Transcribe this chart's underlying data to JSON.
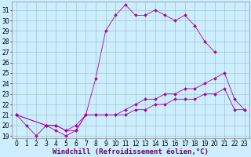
{
  "xlabel": "Windchill (Refroidissement éolien,°C)",
  "bg_color": "#cceeff",
  "line_color": "#aa00aa",
  "xlim_min": -0.5,
  "xlim_max": 23.5,
  "ylim_min": 18.8,
  "ylim_max": 31.8,
  "yticks": [
    19,
    20,
    21,
    22,
    23,
    24,
    25,
    26,
    27,
    28,
    29,
    30,
    31
  ],
  "xticks": [
    0,
    1,
    2,
    3,
    4,
    5,
    6,
    7,
    8,
    9,
    10,
    11,
    12,
    13,
    14,
    15,
    16,
    17,
    18,
    19,
    20,
    21,
    22,
    23
  ],
  "line1_x": [
    0,
    1,
    2,
    3,
    4,
    5,
    6,
    7,
    8,
    9,
    10,
    11,
    12,
    13,
    14,
    15,
    16,
    17,
    18,
    19,
    20
  ],
  "line1_y": [
    21.0,
    20.0,
    19.0,
    20.0,
    20.0,
    19.5,
    19.5,
    21.0,
    24.5,
    29.0,
    30.5,
    31.5,
    30.5,
    30.5,
    31.0,
    30.5,
    30.0,
    30.5,
    29.5,
    28.0,
    27.0
  ],
  "line2_x": [
    0,
    3,
    4,
    5,
    6,
    7,
    8,
    9,
    10,
    11,
    12,
    13,
    14,
    15,
    16,
    17,
    18,
    19,
    20,
    21,
    22,
    23
  ],
  "line2_y": [
    21.0,
    20.0,
    20.0,
    19.5,
    20.0,
    21.0,
    21.0,
    21.0,
    21.0,
    21.5,
    22.0,
    22.5,
    22.5,
    23.0,
    23.0,
    23.5,
    23.5,
    24.0,
    24.5,
    25.0,
    22.5,
    21.5
  ],
  "line3_x": [
    0,
    3,
    4,
    5,
    6,
    7,
    8,
    9,
    10,
    11,
    12,
    13,
    14,
    15,
    16,
    17,
    18,
    19,
    20,
    21,
    22,
    23
  ],
  "line3_y": [
    21.0,
    20.0,
    19.5,
    19.0,
    19.5,
    21.0,
    21.0,
    21.0,
    21.0,
    21.0,
    21.5,
    21.5,
    22.0,
    22.0,
    22.5,
    22.5,
    22.5,
    23.0,
    23.0,
    23.5,
    21.5,
    21.5
  ],
  "grid_color": "#99bbbb",
  "tick_fontsize": 5.5,
  "xlabel_fontsize": 6.5,
  "linewidth": 0.6,
  "markersize": 2.0
}
